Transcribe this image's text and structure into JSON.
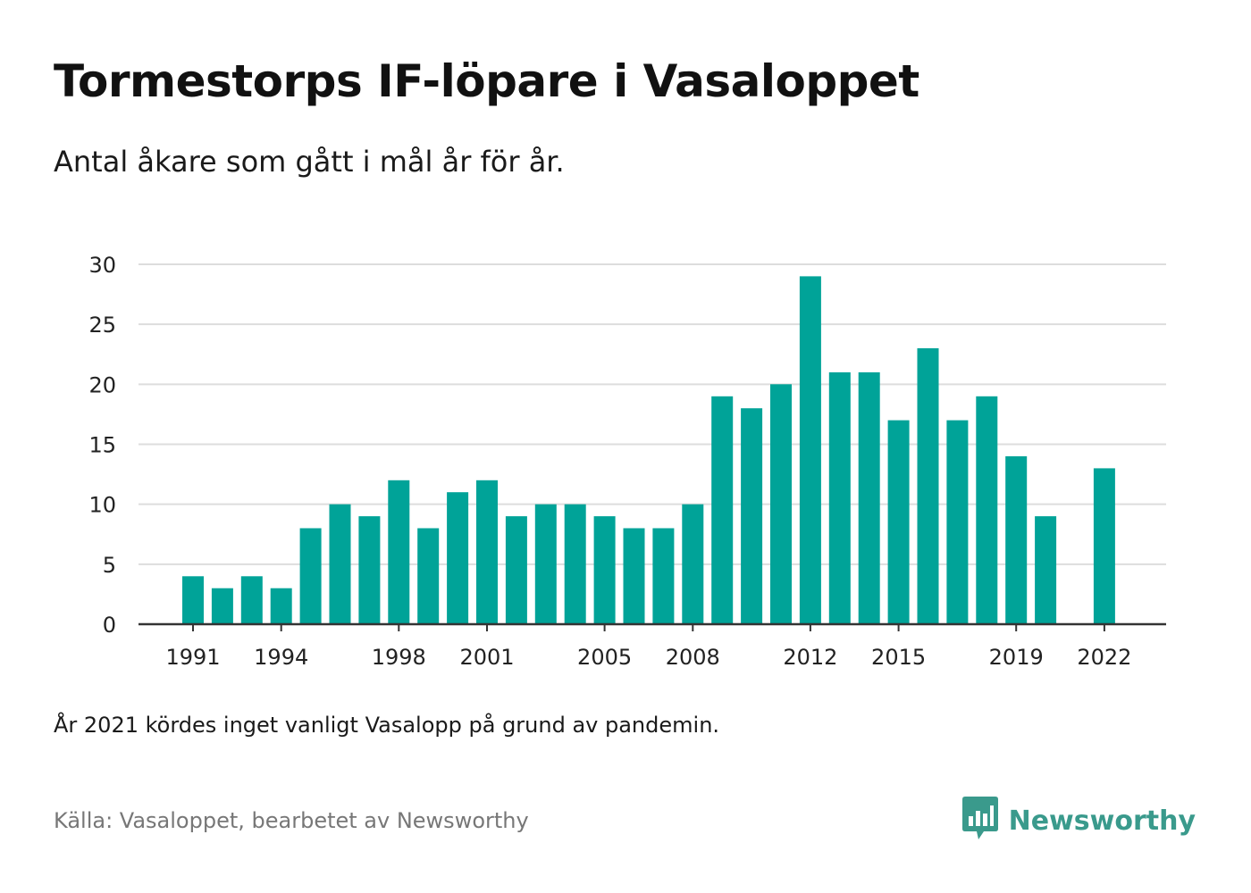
{
  "header": {
    "title": "Tormestorps IF-löpare i Vasaloppet",
    "subtitle": "Antal åkare som gått i mål år för år."
  },
  "footer": {
    "note": "År 2021 kördes inget vanligt Vasalopp på grund av pandemin.",
    "source": "Källa: Vasaloppet, bearbetet av Newsworthy",
    "brand": "Newsworthy",
    "brand_icon": "bar-chart-bubble-icon"
  },
  "colors": {
    "bar": "#00a398",
    "grid": "#dddddd",
    "axis": "#333333",
    "brand": "#3a9a8c"
  },
  "chart_data": {
    "type": "bar",
    "title": "Tormestorps IF-löpare i Vasaloppet",
    "subtitle": "Antal åkare som gått i mål år för år.",
    "xlabel": "",
    "ylabel": "",
    "ylim": [
      0,
      30
    ],
    "yticks": [
      0,
      5,
      10,
      15,
      20,
      25,
      30
    ],
    "grid": true,
    "legend": "none",
    "x_tick_labels": [
      "1991",
      "1994",
      "1998",
      "2001",
      "2005",
      "2008",
      "2012",
      "2015",
      "2019",
      "2022"
    ],
    "categories": [
      1991,
      1992,
      1993,
      1994,
      1995,
      1996,
      1997,
      1998,
      1999,
      2000,
      2001,
      2002,
      2003,
      2004,
      2005,
      2006,
      2007,
      2008,
      2009,
      2010,
      2011,
      2012,
      2013,
      2014,
      2015,
      2016,
      2017,
      2018,
      2019,
      2020,
      2021,
      2022
    ],
    "values": [
      4,
      3,
      4,
      3,
      8,
      10,
      9,
      12,
      8,
      11,
      12,
      9,
      10,
      10,
      9,
      8,
      8,
      10,
      19,
      18,
      20,
      29,
      21,
      21,
      17,
      23,
      17,
      19,
      14,
      9,
      null,
      13
    ]
  }
}
